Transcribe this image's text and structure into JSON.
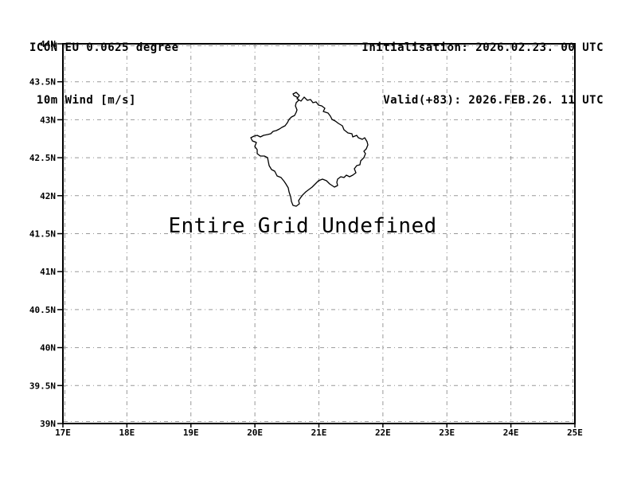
{
  "header": {
    "model_line": "ICON EU 0.0625 degree",
    "param_line": " 10m Wind [m/s]",
    "init_line": "Initialisation: 2026.02.23. 00 UTC",
    "valid_line": "Valid(+83): 2026.FEB.26. 11 UTC"
  },
  "chart_data": {
    "type": "map",
    "title": "ICON EU 0.0625 degree",
    "subtitle": "10m Wind [m/s]",
    "annotation": "Entire Grid Undefined",
    "region_outline": "Kosovo",
    "series": [],
    "x_axis": {
      "range": [
        17,
        25
      ],
      "grid": true,
      "ticks": [
        {
          "v": 17,
          "label": "17E"
        },
        {
          "v": 18,
          "label": "18E"
        },
        {
          "v": 19,
          "label": "19E"
        },
        {
          "v": 20,
          "label": "20E"
        },
        {
          "v": 21,
          "label": "21E"
        },
        {
          "v": 22,
          "label": "22E"
        },
        {
          "v": 23,
          "label": "23E"
        },
        {
          "v": 24,
          "label": "24E"
        },
        {
          "v": 25,
          "label": "25E"
        }
      ]
    },
    "y_axis": {
      "range": [
        39,
        44
      ],
      "grid": true,
      "ticks": [
        {
          "v": 44,
          "label": "44N"
        },
        {
          "v": 43.5,
          "label": "43.5N"
        },
        {
          "v": 43,
          "label": "43N"
        },
        {
          "v": 42.5,
          "label": "42.5N"
        },
        {
          "v": 42,
          "label": "42N"
        },
        {
          "v": 41.5,
          "label": "41.5N"
        },
        {
          "v": 41,
          "label": "41N"
        },
        {
          "v": 40.5,
          "label": "40.5N"
        },
        {
          "v": 40,
          "label": "40N"
        },
        {
          "v": 39.5,
          "label": "39.5N"
        },
        {
          "v": 39,
          "label": "39N"
        }
      ]
    }
  },
  "colors": {
    "background": "#ffffff",
    "frame": "#000000",
    "grid": "#999999",
    "text": "#000000"
  }
}
